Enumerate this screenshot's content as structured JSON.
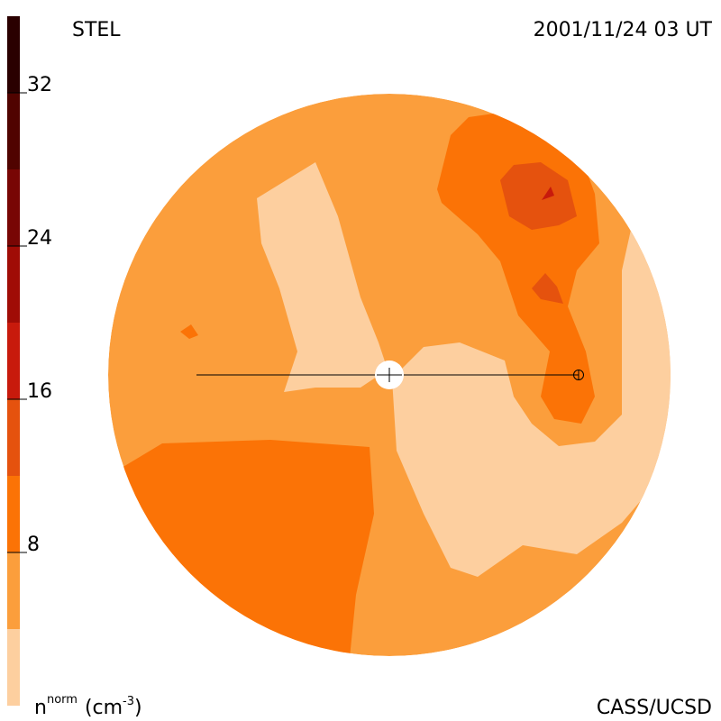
{
  "header": {
    "left": "STEL",
    "right": "2001/11/24 03 UT"
  },
  "footer": {
    "right": "CASS/UCSD"
  },
  "colorbar": {
    "label": {
      "symbol": "n",
      "superscript": "norm",
      "unit_open": "(cm",
      "unit_exponent": "-3",
      "unit_close": ")"
    },
    "lim": [
      0,
      36
    ],
    "levels": [
      0,
      4,
      8,
      12,
      16,
      20,
      24,
      28,
      32,
      36
    ],
    "colors": [
      "#fdcf9f",
      "#fb9e3c",
      "#fb7306",
      "#e5520e",
      "#c81a0c",
      "#a00c06",
      "#780604",
      "#500300",
      "#2a0000"
    ],
    "ticks": [
      8,
      16,
      24,
      32
    ]
  }
}
